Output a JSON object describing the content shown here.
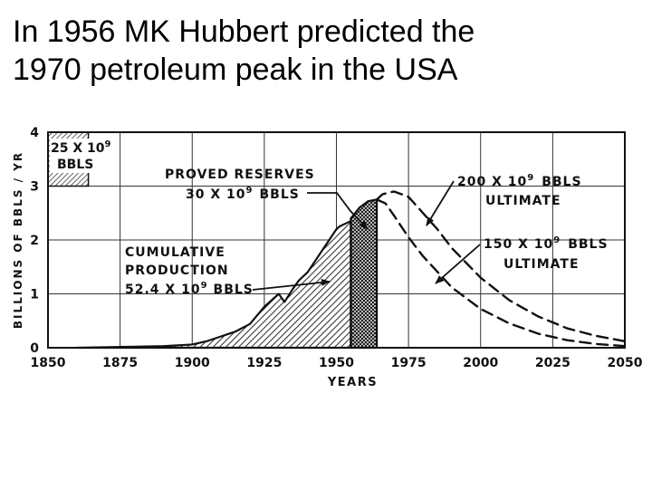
{
  "slide": {
    "title_line1": "In 1956 MK Hubbert predicted the",
    "title_line2": "1970 petroleum peak in the USA"
  },
  "chart_data": {
    "type": "area",
    "title": "",
    "xlabel": "YEARS",
    "ylabel": "BILLIONS OF BBLS / YR",
    "xlim": [
      1850,
      2050
    ],
    "ylim": [
      0,
      4
    ],
    "x_ticks": [
      "1850",
      "1875",
      "1900",
      "1925",
      "1950",
      "1975",
      "2000",
      "2025",
      "2050"
    ],
    "y_ticks": [
      "0",
      "1",
      "2",
      "3",
      "4"
    ],
    "grid": true,
    "series": [
      {
        "style": "solid-hatched",
        "x": [
          1860,
          1880,
          1890,
          1900,
          1905,
          1910,
          1915,
          1920,
          1925,
          1930,
          1932,
          1935,
          1937,
          1940,
          1945,
          1950,
          1951,
          1955
        ],
        "y": [
          0.0,
          0.02,
          0.03,
          0.06,
          0.12,
          0.21,
          0.3,
          0.44,
          0.76,
          1.0,
          0.85,
          1.1,
          1.25,
          1.4,
          1.8,
          2.2,
          2.25,
          2.35
        ]
      },
      {
        "style": "cross-hatched",
        "x": [
          1955,
          1958,
          1961,
          1964
        ],
        "y": [
          2.4,
          2.6,
          2.72,
          2.75
        ]
      },
      {
        "style": "dashed",
        "x": [
          1964,
          1966,
          1970,
          1975,
          1980,
          1985,
          1990,
          2000,
          2010,
          2020,
          2030,
          2040,
          2050
        ],
        "y": [
          2.75,
          2.85,
          2.9,
          2.8,
          2.5,
          2.2,
          1.85,
          1.3,
          0.88,
          0.58,
          0.36,
          0.22,
          0.12
        ]
      },
      {
        "style": "dashed",
        "x": [
          1964,
          1967,
          1970,
          1975,
          1980,
          1990,
          2000,
          2010,
          2020,
          2030,
          2040,
          2050
        ],
        "y": [
          2.75,
          2.68,
          2.45,
          2.05,
          1.7,
          1.12,
          0.72,
          0.45,
          0.26,
          0.14,
          0.07,
          0.03
        ]
      }
    ],
    "box": {
      "label_value": "25 X 10",
      "label_exp": "9",
      "label_unit": "BBLS",
      "x": [
        1850,
        1864
      ],
      "y": [
        3,
        4
      ]
    },
    "annotations": {
      "proved_line1": "PROVED  RESERVES",
      "proved_value": "30 X 10",
      "proved_exp": "9",
      "proved_unit": "BBLS",
      "cumulative_line1": "CUMULATIVE",
      "cumulative_line2": "PRODUCTION",
      "cumulative_value": "52.4 X 10",
      "cumulative_exp": "9",
      "cumulative_unit": "BBLS",
      "ult200_value": "200 X 10",
      "ult200_exp": "9",
      "ult200_unit": "BBLS",
      "ult200_word": "ULTIMATE",
      "ult150_value": "150 X 10",
      "ult150_exp": "9",
      "ult150_unit": "BBLS",
      "ult150_word": "ULTIMATE"
    }
  }
}
